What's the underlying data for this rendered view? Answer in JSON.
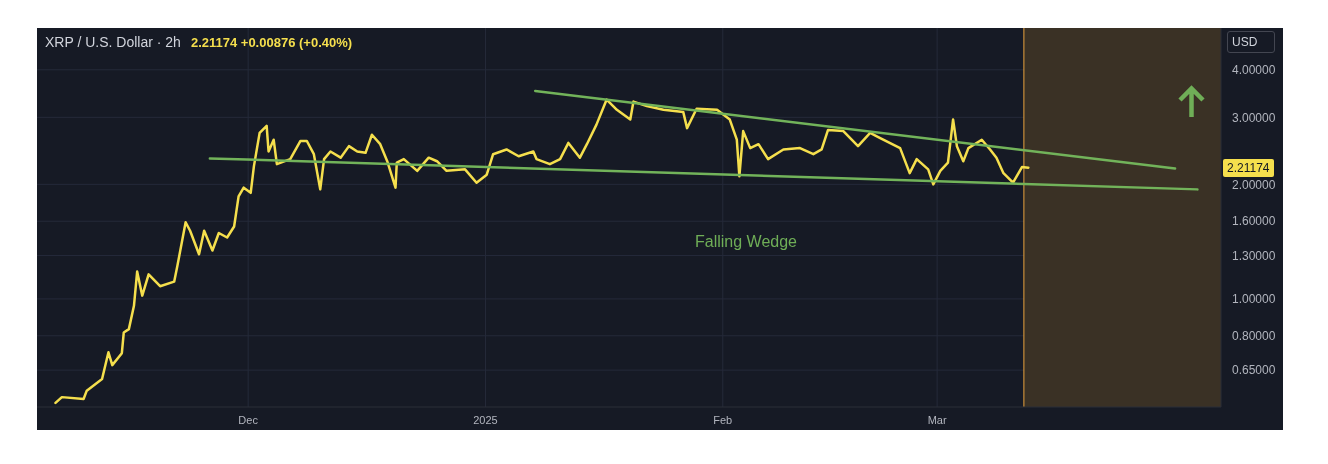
{
  "chart_data": {
    "type": "line",
    "title": "XRP / U.S. Dollar · 2h",
    "subtitle": "2.21174 +0.00876 (+0.40%)",
    "ylabel": "USD",
    "series": [
      {
        "color": "#f5df4d",
        "x": [
          "2024-11-05T20:00",
          "2024-11-06T16:00",
          "2024-11-09T12:00",
          "2024-11-09T22:00",
          "2024-11-11T22:00",
          "2024-11-12T18:00",
          "2024-11-13T06:00",
          "2024-11-14T12:00",
          "2024-11-14T18:00",
          "2024-11-15T10:00",
          "2024-11-16T02:00",
          "2024-11-16T12:00",
          "2024-11-17T04:00",
          "2024-11-18T00:00",
          "2024-11-19T12:00",
          "2024-11-21T08:00",
          "2024-11-21T18:00",
          "2024-11-22T20:00",
          "2024-11-23T10:00",
          "2024-11-24T14:00",
          "2024-11-25T06:00",
          "2024-11-26T08:00",
          "2024-11-27T04:00",
          "2024-11-28T06:00",
          "2024-11-29T04:00",
          "2024-11-29T18:00",
          "2024-11-30T10:00",
          "2024-12-01T08:00",
          "2024-12-01T18:00",
          "2024-12-02T12:00",
          "2024-12-03T10:00",
          "2024-12-03T16:00",
          "2024-12-04T08:00",
          "2024-12-04T18:00",
          "2024-12-06T12:00",
          "2024-12-07T20:00",
          "2024-12-08T16:00",
          "2024-12-09T14:00",
          "2024-12-10T10:00",
          "2024-12-10T22:00",
          "2024-12-11T18:00",
          "2024-12-13T02:00",
          "2024-12-14T04:00",
          "2024-12-15T06:00",
          "2024-12-16T08:00",
          "2024-12-17T04:00",
          "2024-12-18T06:00",
          "2024-12-19T04:00",
          "2024-12-20T06:00",
          "2024-12-20T10:00",
          "2024-12-21T08:00",
          "2024-12-23T02:00",
          "2024-12-24T14:00",
          "2024-12-25T16:00",
          "2024-12-26T22:00",
          "2024-12-29T08:00",
          "2024-12-30T20:00",
          "2025-01-01T04:00",
          "2025-01-02T00:00",
          "2025-01-03T18:00",
          "2025-01-05T08:00",
          "2025-01-07T06:00",
          "2025-01-07T16:00",
          "2025-01-09T10:00",
          "2025-01-10T18:00",
          "2025-01-11T20:00",
          "2025-01-13T08:00",
          "2025-01-14T06:00",
          "2025-01-15T12:00",
          "2025-01-16T20:00",
          "2025-01-18T04:00",
          "2025-01-19T22:00",
          "2025-01-20T08:00",
          "2025-01-22T02:00",
          "2025-01-24T06:00",
          "2025-01-26T20:00",
          "2025-01-27T08:00",
          "2025-01-28T14:00",
          "2025-01-31T06:00",
          "2025-02-01T22:00",
          "2025-02-02T20:00",
          "2025-02-03T04:00",
          "2025-02-03T16:00",
          "2025-02-04T14:00",
          "2025-02-05T16:00",
          "2025-02-06T22:00",
          "2025-02-08T22:00",
          "2025-02-11T02:00",
          "2025-02-12T20:00",
          "2025-02-13T22:00",
          "2025-02-14T18:00",
          "2025-02-16T18:00",
          "2025-02-18T16:00",
          "2025-02-20T06:00",
          "2025-02-21T12:00",
          "2025-02-24T04:00",
          "2025-02-25T10:00",
          "2025-02-26T08:00",
          "2025-02-27T20:00",
          "2025-02-28T12:00",
          "2025-03-01T10:00",
          "2025-03-02T10:00",
          "2025-03-03T02:00",
          "2025-03-03T14:00",
          "2025-03-04T10:00",
          "2025-03-05T02:00",
          "2025-03-06T20:00",
          "2025-03-07T22:00",
          "2025-03-08T18:00",
          "2025-03-09T16:00",
          "2025-03-10T22:00",
          "2025-03-12T02:00",
          "2025-03-12T22:00"
        ],
        "values": [
          0.533,
          0.552,
          0.546,
          0.574,
          0.616,
          0.724,
          0.67,
          0.72,
          0.816,
          0.833,
          0.959,
          1.18,
          1.02,
          1.16,
          1.08,
          1.11,
          1.22,
          1.59,
          1.51,
          1.31,
          1.51,
          1.34,
          1.49,
          1.45,
          1.55,
          1.86,
          1.96,
          1.9,
          2.23,
          2.73,
          2.85,
          2.44,
          2.62,
          2.26,
          2.33,
          2.6,
          2.6,
          2.4,
          1.94,
          2.33,
          2.44,
          2.35,
          2.52,
          2.44,
          2.42,
          2.7,
          2.55,
          2.3,
          1.96,
          2.28,
          2.33,
          2.17,
          2.35,
          2.3,
          2.17,
          2.19,
          2.02,
          2.12,
          2.4,
          2.47,
          2.37,
          2.44,
          2.33,
          2.26,
          2.33,
          2.57,
          2.35,
          2.55,
          2.87,
          3.34,
          3.14,
          2.96,
          3.3,
          3.21,
          3.14,
          3.1,
          2.81,
          3.16,
          3.14,
          2.96,
          2.62,
          2.1,
          2.76,
          2.49,
          2.55,
          2.33,
          2.47,
          2.49,
          2.4,
          2.47,
          2.78,
          2.76,
          2.52,
          2.73,
          2.65,
          2.49,
          2.14,
          2.33,
          2.19,
          2.0,
          2.17,
          2.28,
          2.96,
          2.52,
          2.3,
          2.49,
          2.62,
          2.47,
          2.35,
          2.14,
          2.02,
          2.22,
          2.21174
        ]
      },
      {
        "color": "#72b35a",
        "x": [
          "2025-01-07T12:00",
          "2025-04-01T02:00"
        ],
        "values": [
          3.52,
          2.2
        ]
      },
      {
        "color": "#72b35a",
        "x": [
          "2024-11-26T00:00",
          "2025-04-04T00:00"
        ],
        "values": [
          2.34,
          1.94
        ]
      }
    ],
    "xlim": [
      "2024-11-03T10:00",
      "2025-04-07T02:00"
    ],
    "xticks": [
      {
        "value": "2024-12-01",
        "label": "Dec"
      },
      {
        "value": "2025-01-01",
        "label": "2025"
      },
      {
        "value": "2025-02-01",
        "label": "Feb"
      },
      {
        "value": "2025-03-01",
        "label": "Mar"
      }
    ],
    "ylim": [
      0.52,
      5.15
    ],
    "yticks": [
      {
        "value": 0.65,
        "label": "0.65000"
      },
      {
        "value": 0.8,
        "label": "0.80000"
      },
      {
        "value": 1,
        "label": "1.00000"
      },
      {
        "value": 1.3,
        "label": "1.30000"
      },
      {
        "value": 1.6,
        "label": "1.60000"
      },
      {
        "value": 2,
        "label": "2.00000"
      },
      {
        "value": 3,
        "label": "3.00000"
      },
      {
        "value": 4,
        "label": "4.00000"
      }
    ],
    "log": true,
    "grid": true,
    "marker": "none",
    "bands": [
      {
        "axis": "x",
        "from": "2025-03-12T08:00",
        "to": "2025-04-07T02:00",
        "color": "#3a3125"
      }
    ],
    "ref_lines": [
      {
        "axis": "x",
        "value": "2025-03-12T08:00",
        "color": "#e8a33d"
      }
    ],
    "annotations": [
      "Falling Wedge",
      "2.21174"
    ]
  }
}
